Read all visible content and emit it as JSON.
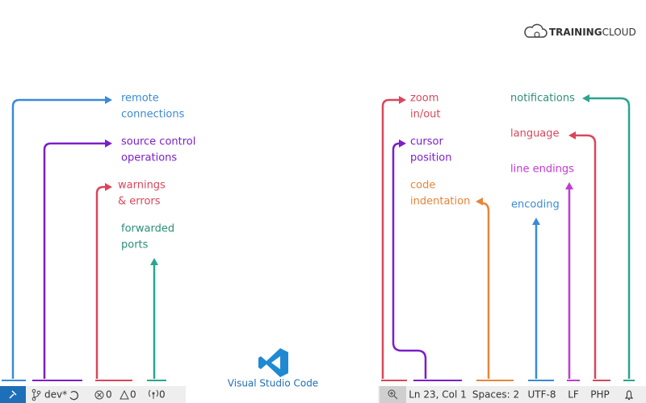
{
  "brand": {
    "bold": "TRAINING",
    "light": "CLOUD"
  },
  "logo": {
    "caption": "Visual Studio Code"
  },
  "annotations": [
    {
      "lines": [
        "remote",
        "connections"
      ]
    },
    {
      "lines": [
        "source control",
        "operations"
      ]
    },
    {
      "lines": [
        "warnings",
        "& errors"
      ]
    },
    {
      "lines": [
        "forwarded",
        "ports"
      ]
    },
    {
      "lines": [
        "zoom",
        "in/out"
      ]
    },
    {
      "lines": [
        "cursor",
        "position"
      ]
    },
    {
      "lines": [
        "code",
        "indentation"
      ]
    },
    {
      "lines": [
        "encoding"
      ]
    },
    {
      "lines": [
        "line endings"
      ]
    },
    {
      "lines": [
        "language"
      ]
    },
    {
      "lines": [
        "notifications"
      ]
    }
  ],
  "status_bar": {
    "branch": "dev*",
    "errors": 0,
    "warnings": 0,
    "ports": 0,
    "cursor": "Ln 23, Col 1",
    "indentation": "Spaces: 2",
    "encoding": "UTF-8",
    "line_ending": "LF",
    "language": "PHP"
  }
}
